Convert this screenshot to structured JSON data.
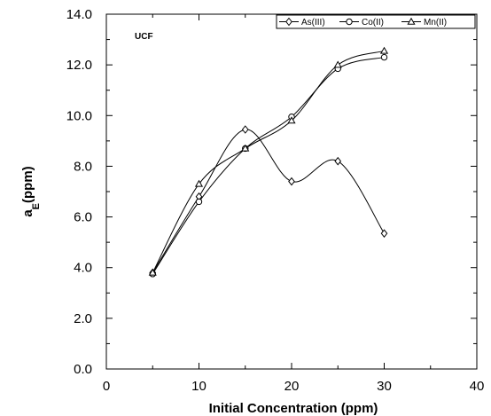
{
  "chart_data": {
    "type": "line",
    "title": "",
    "annotation": "UCF",
    "xlabel": "Initial Concentration (ppm)",
    "ylabel": {
      "main": "a",
      "subscript": "E",
      "rest": "(ppm)"
    },
    "xlim": [
      0,
      40
    ],
    "ylim": [
      0,
      14
    ],
    "x_ticks": [
      "0",
      "10",
      "20",
      "30",
      "40"
    ],
    "y_ticks": [
      "0.0",
      "2.0",
      "4.0",
      "6.0",
      "8.0",
      "10.0",
      "12.0",
      "14.0"
    ],
    "grid": false,
    "legend_position": "top-right",
    "x": [
      5,
      10,
      15,
      20,
      25,
      30
    ],
    "series": [
      {
        "name": "As(III)",
        "marker": "diamond",
        "values": [
          3.8,
          6.8,
          9.45,
          7.4,
          8.2,
          5.35
        ]
      },
      {
        "name": "Co(II)",
        "marker": "circle",
        "values": [
          3.75,
          6.6,
          8.7,
          9.95,
          11.85,
          12.3
        ]
      },
      {
        "name": "Mn(II)",
        "marker": "triangle",
        "values": [
          3.8,
          7.3,
          8.7,
          9.8,
          12.0,
          12.55
        ]
      }
    ]
  }
}
